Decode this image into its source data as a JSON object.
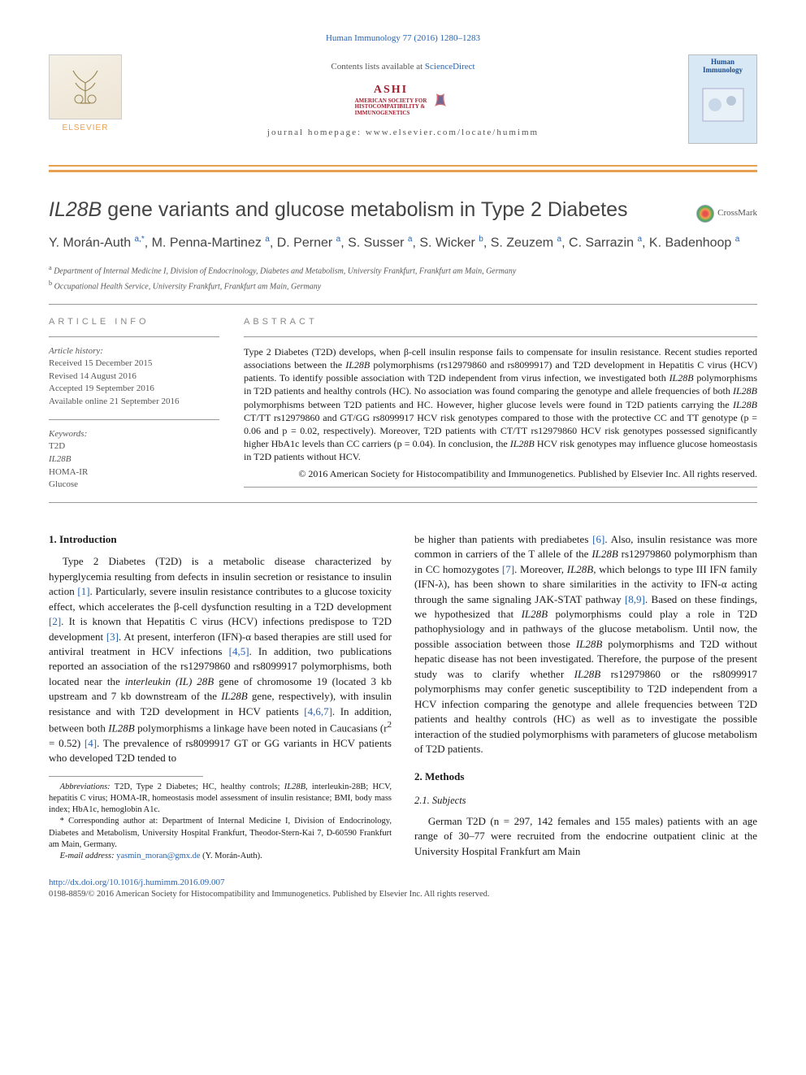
{
  "topCitation": "Human Immunology 77 (2016) 1280–1283",
  "contentsLine_prefix": "Contents lists available at ",
  "contentsLine_link": "ScienceDirect",
  "ashi": {
    "main": "ASHI",
    "sub1": "AMERICAN SOCIETY FOR",
    "sub2": "HISTOCOMPATIBILITY &",
    "sub3": "IMMUNOGENETICS"
  },
  "homepageLine": "journal homepage: www.elsevier.com/locate/humimm",
  "elsevierLabel": "ELSEVIER",
  "coverTitle": "Human Immunology",
  "title_pre": "IL28B",
  "title_post": " gene variants and glucose metabolism in Type 2 Diabetes",
  "crossmark": "CrossMark",
  "authors_html": "Y. Morán-Auth <sup>a,*</sup>, M. Penna-Martinez <sup>a</sup>, D. Perner <sup>a</sup>, S. Susser <sup>a</sup>, S. Wicker <sup>b</sup>, S. Zeuzem <sup>a</sup>, C. Sarrazin <sup>a</sup>, K. Badenhoop <sup>a</sup>",
  "affiliations": [
    "a Department of Internal Medicine I, Division of Endocrinology, Diabetes and Metabolism, University Frankfurt, Frankfurt am Main, Germany",
    "b Occupational Health Service, University Frankfurt, Frankfurt am Main, Germany"
  ],
  "infoHead": "article info",
  "abstractHead": "abstract",
  "history": {
    "label": "Article history:",
    "received": "Received 15 December 2015",
    "revised": "Revised 14 August 2016",
    "accepted": "Accepted 19 September 2016",
    "online": "Available online 21 September 2016"
  },
  "keywordsLabel": "Keywords:",
  "keywords": [
    "T2D",
    "IL28B",
    "HOMA-IR",
    "Glucose"
  ],
  "abstract": "Type 2 Diabetes (T2D) develops, when β-cell insulin response fails to compensate for insulin resistance. Recent studies reported associations between the <span class=\"italic\">IL28B</span> polymorphisms (rs12979860 and rs8099917) and T2D development in Hepatitis C virus (HCV) patients. To identify possible association with T2D independent from virus infection, we investigated both <span class=\"italic\">IL28B</span> polymorphisms in T2D patients and healthy controls (HC). No association was found comparing the genotype and allele frequencies of both <span class=\"italic\">IL28B</span> polymorphisms between T2D patients and HC. However, higher glucose levels were found in T2D patients carrying the <span class=\"italic\">IL28B</span> CT/TT rs12979860 and GT/GG rs8099917 HCV risk genotypes compared to those with the protective CC and TT genotype (p = 0.06 and p = 0.02, respectively). Moreover, T2D patients with CT/TT rs12979860 HCV risk genotypes possessed significantly higher HbA1c levels than CC carriers (p = 0.04). In conclusion, the <span class=\"italic\">IL28B</span> HCV risk genotypes may influence glucose homeostasis in T2D patients without HCV.",
  "copyright": "© 2016 American Society for Histocompatibility and Immunogenetics. Published by Elsevier Inc. All rights reserved.",
  "sec1_head": "1. Introduction",
  "sec1_p1": "Type 2 Diabetes (T2D) is a metabolic disease characterized by hyperglycemia resulting from defects in insulin secretion or resistance to insulin action <a href=\"#\">[1]</a>. Particularly, severe insulin resistance contributes to a glucose toxicity effect, which accelerates the β-cell dysfunction resulting in a T2D development <a href=\"#\">[2]</a>. It is known that Hepatitis C virus (HCV) infections predispose to T2D development <a href=\"#\">[3]</a>. At present, interferon (IFN)-α based therapies are still used for antiviral treatment in HCV infections <a href=\"#\">[4,5]</a>. In addition, two publications reported an association of the rs12979860 and rs8099917 polymorphisms, both located near the <span class=\"italic\">interleukin (IL) 28B</span> gene of chromosome 19 (located 3 kb upstream and 7 kb downstream of the <span class=\"italic\">IL28B</span> gene, respectively), with insulin resistance and with T2D development in HCV patients <a href=\"#\">[4,6,7]</a>. In addition, between both <span class=\"italic\">IL28B</span> polymorphisms a linkage have been noted in Caucasians (r<sup>2</sup> = 0.52) <a href=\"#\">[4]</a>. The prevalence of rs8099917 GT or GG variants in HCV patients who developed T2D tended to",
  "sec1_p2": "be higher than patients with prediabetes <a href=\"#\">[6]</a>. Also, insulin resistance was more common in carriers of the T allele of the <span class=\"italic\">IL28B</span> rs12979860 polymorphism than in CC homozygotes <a href=\"#\">[7]</a>. Moreover, <span class=\"italic\">IL28B</span>, which belongs to type III IFN family (IFN-λ), has been shown to share similarities in the activity to IFN-α acting through the same signaling JAK-STAT pathway <a href=\"#\">[8,9]</a>. Based on these findings, we hypothesized that <span class=\"italic\">IL28B</span> polymorphisms could play a role in T2D pathophysiology and in pathways of the glucose metabolism. Until now, the possible association between those <span class=\"italic\">IL28B</span> polymorphisms and T2D without hepatic disease has not been investigated. Therefore, the purpose of the present study was to clarify whether <span class=\"italic\">IL28B</span> rs12979860 or the rs8099917 polymorphisms may confer genetic susceptibility to T2D independent from a HCV infection comparing the genotype and allele frequencies between T2D patients and healthy controls (HC) as well as to investigate the possible interaction of the studied polymorphisms with parameters of glucose metabolism of T2D patients.",
  "sec2_head": "2. Methods",
  "sec21_head": "2.1. Subjects",
  "sec21_p1": "German T2D (n = 297, 142 females and 155 males) patients with an age range of 30–77 were recruited from the endocrine outpatient clinic at the University Hospital Frankfurt am Main",
  "footnote_abbrev": "<span class=\"italic\">Abbreviations:</span> T2D, Type 2 Diabetes; HC, healthy controls; <span class=\"italic\">IL28B</span>, interleukin-28B; HCV, hepatitis C virus; HOMA-IR, homeostasis model assessment of insulin resistance; BMI, body mass index; HbA1c, hemoglobin A1c.",
  "footnote_corresp": "* Corresponding author at: Department of Internal Medicine I, Division of Endocrinology, Diabetes and Metabolism, University Hospital Frankfurt, Theodor-Stern-Kai 7, D-60590 Frankfurt am Main, Germany.",
  "footnote_email_label": "E-mail address: ",
  "footnote_email": "yasmin_moran@gmx.de",
  "footnote_email_suffix": " (Y. Morán-Auth).",
  "doi": "http://dx.doi.org/10.1016/j.humimm.2016.09.007",
  "issn": "0198-8859/© 2016 American Society for Histocompatibility and Immunogenetics. Published by Elsevier Inc. All rights reserved.",
  "colors": {
    "link": "#2864b0",
    "orange": "#e8a050",
    "ashiRed": "#a02030"
  }
}
